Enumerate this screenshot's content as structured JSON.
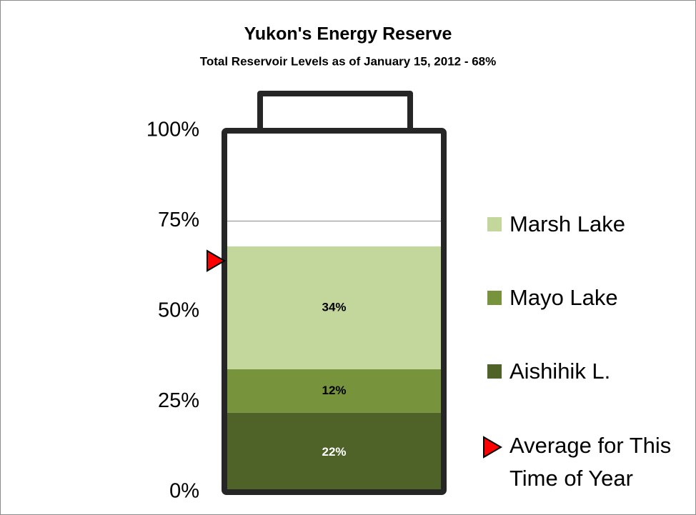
{
  "chart_data": {
    "type": "stacked-bar",
    "title": "Yukon's Energy Reserve",
    "subtitle": "Total Reservoir Levels as of January 15, 2012 - 68%",
    "categories": [
      null
    ],
    "series": [
      {
        "name": "Aishihik L.",
        "color": "#4f6228",
        "values": [
          22
        ],
        "value_labels": [
          "22%"
        ],
        "label_color": "#ffffff"
      },
      {
        "name": "Mayo Lake",
        "color": "#77933c",
        "values": [
          12
        ],
        "value_labels": [
          "12%"
        ],
        "label_color": "#000000"
      },
      {
        "name": "Marsh Lake",
        "color": "#c3d69b",
        "values": [
          34
        ],
        "value_labels": [
          "34%"
        ],
        "label_color": "#000000"
      }
    ],
    "average": {
      "name": "Average for This Time of Year",
      "value": 64,
      "color": "#ff0000"
    },
    "ylim": [
      0,
      100
    ],
    "yticks": [
      {
        "value": 0,
        "label": "0%"
      },
      {
        "value": 25,
        "label": "25%"
      },
      {
        "value": 50,
        "label": "50%"
      },
      {
        "value": 75,
        "label": "75%"
      },
      {
        "value": 100,
        "label": "100%"
      }
    ],
    "grid": true
  }
}
